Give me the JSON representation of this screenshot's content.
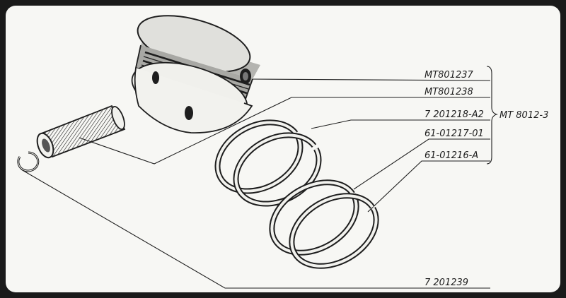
{
  "parts": {
    "piston": "MT801237",
    "piston_pin": "MT801238",
    "compression_ring_1": "7 201218-A2",
    "compression_ring_2": "61-01217-01",
    "oil_ring": "61-01216-A",
    "circlip": "7 201239"
  },
  "assembly": {
    "label": "MT 8012-3"
  }
}
